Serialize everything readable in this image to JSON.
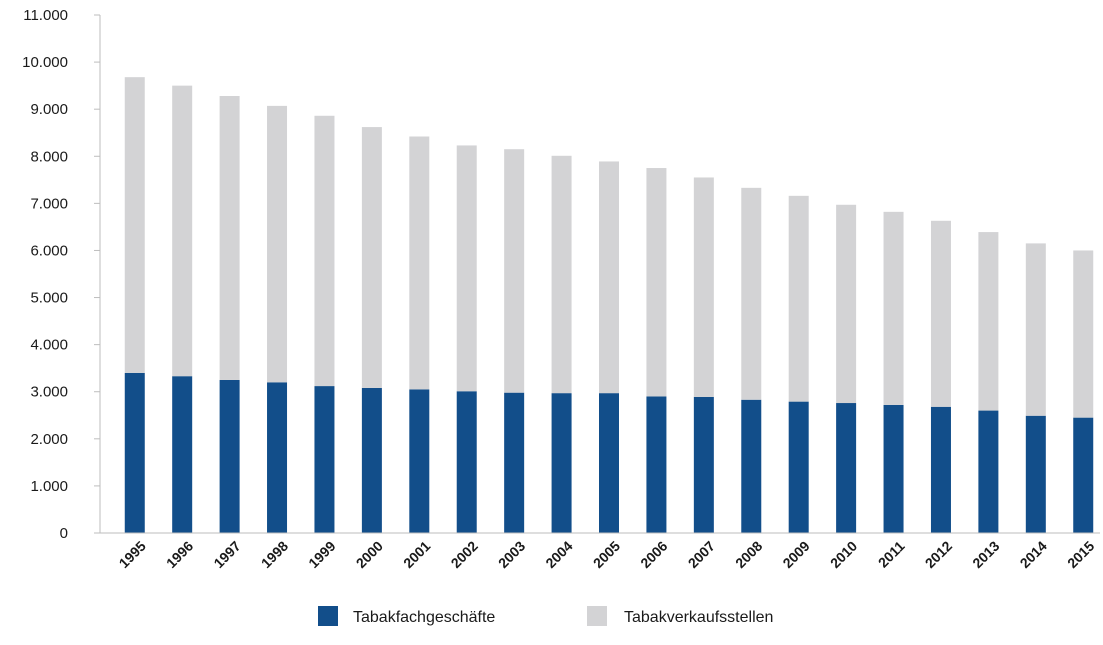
{
  "chart_data": {
    "type": "bar",
    "stacked": true,
    "categories": [
      "1995",
      "1996",
      "1997",
      "1998",
      "1999",
      "2000",
      "2001",
      "2002",
      "2003",
      "2004",
      "2005",
      "2006",
      "2007",
      "2008",
      "2009",
      "2010",
      "2011",
      "2012",
      "2013",
      "2014",
      "2015"
    ],
    "series": [
      {
        "name": "Tabakfachgeschäfte",
        "color": "#124e8a",
        "values": [
          3400,
          3330,
          3250,
          3200,
          3120,
          3080,
          3050,
          3010,
          2980,
          2970,
          2970,
          2900,
          2890,
          2830,
          2790,
          2760,
          2720,
          2680,
          2600,
          2490,
          2450
        ]
      },
      {
        "name": "Tabakverkaufsstellen",
        "color": "#d3d3d5",
        "values": [
          6280,
          6170,
          6030,
          5870,
          5740,
          5540,
          5370,
          5220,
          5170,
          5040,
          4920,
          4850,
          4660,
          4500,
          4370,
          4210,
          4100,
          3950,
          3790,
          3660,
          3550
        ]
      }
    ],
    "ylim": [
      0,
      11000
    ],
    "yticks": [
      0,
      1000,
      2000,
      3000,
      4000,
      5000,
      6000,
      7000,
      8000,
      9000,
      10000,
      11000
    ],
    "ytick_labels": [
      "0",
      "1.000",
      "2.000",
      "3.000",
      "4.000",
      "5.000",
      "6.000",
      "7.000",
      "8.000",
      "9.000",
      "10.000",
      "11.000"
    ],
    "xlabel": "",
    "ylabel": "",
    "title": "",
    "grid": false,
    "legend_position": "bottom"
  }
}
